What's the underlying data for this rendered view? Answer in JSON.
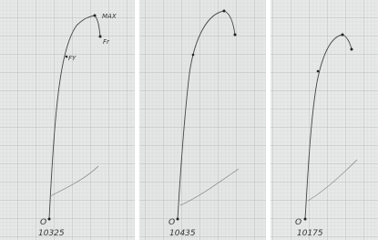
{
  "panels": [
    {
      "origin": "O",
      "specimen": "10325",
      "marks": [
        "MAX",
        "FY",
        "Fr"
      ]
    },
    {
      "origin": "O",
      "specimen": "10435"
    },
    {
      "origin": "O",
      "specimen": "10175"
    }
  ]
}
